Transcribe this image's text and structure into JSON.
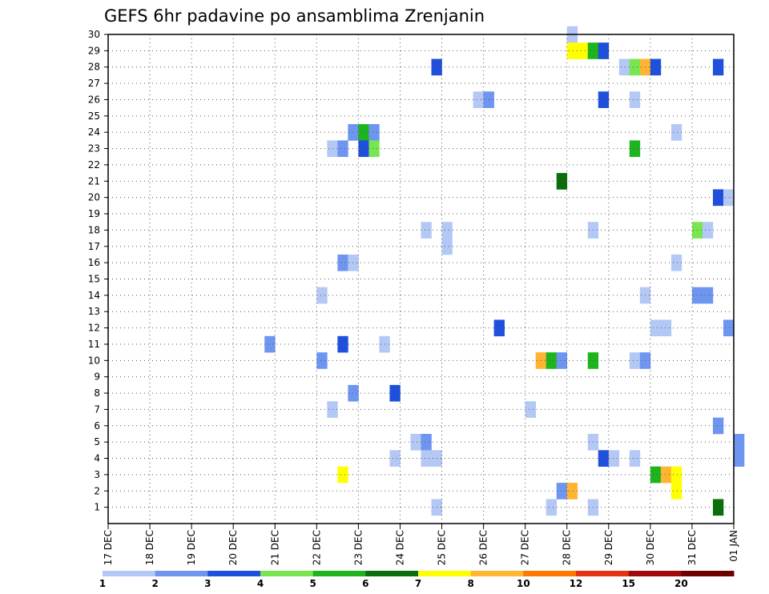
{
  "chart_data": {
    "type": "heatmap",
    "title": "GEFS 6hr padavine po ansamblima Zrenjanin",
    "xlabel": "",
    "ylabel": "",
    "x_ticks": [
      "17 DEC",
      "18 DEC",
      "19 DEC",
      "20 DEC",
      "21 DEC",
      "22 DEC",
      "23 DEC",
      "24 DEC",
      "25 DEC",
      "26 DEC",
      "27 DEC",
      "28 DEC",
      "29 DEC",
      "30 DEC",
      "31 DEC",
      "01 JAN"
    ],
    "y_ticks": [
      "1",
      "2",
      "3",
      "4",
      "5",
      "6",
      "7",
      "8",
      "9",
      "10",
      "11",
      "12",
      "13",
      "14",
      "15",
      "16",
      "17",
      "18",
      "19",
      "20",
      "21",
      "22",
      "23",
      "24",
      "25",
      "26",
      "27",
      "28",
      "29",
      "30"
    ],
    "ylim": [
      0,
      30
    ],
    "xlim_days": [
      0,
      15
    ],
    "grid": true,
    "colorbar": {
      "levels": [
        "1",
        "2",
        "3",
        "4",
        "5",
        "6",
        "7",
        "8",
        "10",
        "12",
        "15",
        "20"
      ],
      "colors": [
        "#b4c8f5",
        "#6e96f0",
        "#1e50dc",
        "#78e650",
        "#1eb41e",
        "#0a6e0a",
        "#ffff00",
        "#ffb432",
        "#ff7800",
        "#e63214",
        "#a00a0a",
        "#6e0000"
      ]
    },
    "cells": [
      {
        "member": 30,
        "x": "28 DEC 00Z",
        "c": 0
      },
      {
        "member": 29,
        "x": "28 DEC 00Z",
        "c": 6
      },
      {
        "member": 29,
        "x": "28 DEC 06Z",
        "c": 6
      },
      {
        "member": 29,
        "x": "28 DEC 12Z",
        "c": 4
      },
      {
        "member": 29,
        "x": "28 DEC 18Z",
        "c": 2
      },
      {
        "member": 28,
        "x": "24 DEC 18Z",
        "c": 2
      },
      {
        "member": 28,
        "x": "29 DEC 06Z",
        "c": 0
      },
      {
        "member": 28,
        "x": "29 DEC 12Z",
        "c": 3
      },
      {
        "member": 28,
        "x": "29 DEC 18Z",
        "c": 7
      },
      {
        "member": 28,
        "x": "30 DEC 00Z",
        "c": 2
      },
      {
        "member": 28,
        "x": "31 DEC 12Z",
        "c": 2
      },
      {
        "member": 26,
        "x": "25 DEC 18Z",
        "c": 0
      },
      {
        "member": 26,
        "x": "26 DEC 00Z",
        "c": 1
      },
      {
        "member": 26,
        "x": "28 DEC 18Z",
        "c": 2
      },
      {
        "member": 26,
        "x": "29 DEC 12Z",
        "c": 0
      },
      {
        "member": 24,
        "x": "22 DEC 18Z",
        "c": 1
      },
      {
        "member": 24,
        "x": "23 DEC 00Z",
        "c": 4
      },
      {
        "member": 24,
        "x": "23 DEC 06Z",
        "c": 1
      },
      {
        "member": 24,
        "x": "30 DEC 12Z",
        "c": 0
      },
      {
        "member": 23,
        "x": "22 DEC 06Z",
        "c": 0
      },
      {
        "member": 23,
        "x": "22 DEC 12Z",
        "c": 1
      },
      {
        "member": 23,
        "x": "23 DEC 00Z",
        "c": 2
      },
      {
        "member": 23,
        "x": "23 DEC 06Z",
        "c": 3
      },
      {
        "member": 23,
        "x": "29 DEC 12Z",
        "c": 4
      },
      {
        "member": 21,
        "x": "27 DEC 18Z",
        "c": 5
      },
      {
        "member": 20,
        "x": "31 DEC 12Z",
        "c": 2
      },
      {
        "member": 20,
        "x": "31 DEC 18Z",
        "c": 0
      },
      {
        "member": 18,
        "x": "24 DEC 12Z",
        "c": 0
      },
      {
        "member": 18,
        "x": "25 DEC 00Z",
        "c": 0
      },
      {
        "member": 18,
        "x": "28 DEC 12Z",
        "c": 0
      },
      {
        "member": 18,
        "x": "31 DEC 00Z",
        "c": 3
      },
      {
        "member": 18,
        "x": "31 DEC 06Z",
        "c": 0
      },
      {
        "member": 17,
        "x": "25 DEC 00Z",
        "c": 0
      },
      {
        "member": 16,
        "x": "22 DEC 12Z",
        "c": 1
      },
      {
        "member": 16,
        "x": "22 DEC 18Z",
        "c": 0
      },
      {
        "member": 16,
        "x": "30 DEC 12Z",
        "c": 0
      },
      {
        "member": 14,
        "x": "22 DEC 00Z",
        "c": 0
      },
      {
        "member": 14,
        "x": "29 DEC 18Z",
        "c": 0
      },
      {
        "member": 14,
        "x": "31 DEC 00Z",
        "c": 1
      },
      {
        "member": 14,
        "x": "31 DEC 06Z",
        "c": 1
      },
      {
        "member": 12,
        "x": "26 DEC 06Z",
        "c": 2
      },
      {
        "member": 12,
        "x": "30 DEC 00Z",
        "c": 0
      },
      {
        "member": 12,
        "x": "30 DEC 06Z",
        "c": 0
      },
      {
        "member": 12,
        "x": "31 DEC 18Z",
        "c": 1
      },
      {
        "member": 11,
        "x": "20 DEC 18Z",
        "c": 1
      },
      {
        "member": 11,
        "x": "22 DEC 12Z",
        "c": 2
      },
      {
        "member": 11,
        "x": "23 DEC 12Z",
        "c": 0
      },
      {
        "member": 10,
        "x": "22 DEC 00Z",
        "c": 1
      },
      {
        "member": 10,
        "x": "27 DEC 06Z",
        "c": 7
      },
      {
        "member": 10,
        "x": "27 DEC 12Z",
        "c": 4
      },
      {
        "member": 10,
        "x": "27 DEC 18Z",
        "c": 1
      },
      {
        "member": 10,
        "x": "28 DEC 12Z",
        "c": 4
      },
      {
        "member": 10,
        "x": "29 DEC 12Z",
        "c": 0
      },
      {
        "member": 10,
        "x": "29 DEC 18Z",
        "c": 1
      },
      {
        "member": 8,
        "x": "22 DEC 18Z",
        "c": 1
      },
      {
        "member": 8,
        "x": "23 DEC 18Z",
        "c": 2
      },
      {
        "member": 7,
        "x": "22 DEC 06Z",
        "c": 0
      },
      {
        "member": 7,
        "x": "27 DEC 00Z",
        "c": 0
      },
      {
        "member": 6,
        "x": "31 DEC 12Z",
        "c": 1
      },
      {
        "member": 5,
        "x": "24 DEC 06Z",
        "c": 0
      },
      {
        "member": 5,
        "x": "24 DEC 12Z",
        "c": 1
      },
      {
        "member": 5,
        "x": "28 DEC 12Z",
        "c": 0
      },
      {
        "member": 5,
        "x": "01 JAN 00Z",
        "c": 1
      },
      {
        "member": 4,
        "x": "23 DEC 18Z",
        "c": 0
      },
      {
        "member": 4,
        "x": "24 DEC 12Z",
        "c": 0
      },
      {
        "member": 4,
        "x": "24 DEC 18Z",
        "c": 0
      },
      {
        "member": 4,
        "x": "28 DEC 18Z",
        "c": 2
      },
      {
        "member": 4,
        "x": "29 DEC 00Z",
        "c": 0
      },
      {
        "member": 4,
        "x": "29 DEC 12Z",
        "c": 0
      },
      {
        "member": 4,
        "x": "01 JAN 00Z",
        "c": 1
      },
      {
        "member": 3,
        "x": "22 DEC 12Z",
        "c": 6
      },
      {
        "member": 3,
        "x": "30 DEC 00Z",
        "c": 4
      },
      {
        "member": 3,
        "x": "30 DEC 06Z",
        "c": 7
      },
      {
        "member": 3,
        "x": "30 DEC 12Z",
        "c": 6
      },
      {
        "member": 2,
        "x": "27 DEC 18Z",
        "c": 1
      },
      {
        "member": 2,
        "x": "28 DEC 00Z",
        "c": 7
      },
      {
        "member": 2,
        "x": "30 DEC 12Z",
        "c": 6
      },
      {
        "member": 1,
        "x": "24 DEC 18Z",
        "c": 0
      },
      {
        "member": 1,
        "x": "27 DEC 12Z",
        "c": 0
      },
      {
        "member": 1,
        "x": "28 DEC 12Z",
        "c": 0
      },
      {
        "member": 1,
        "x": "31 DEC 12Z",
        "c": 5
      }
    ]
  }
}
